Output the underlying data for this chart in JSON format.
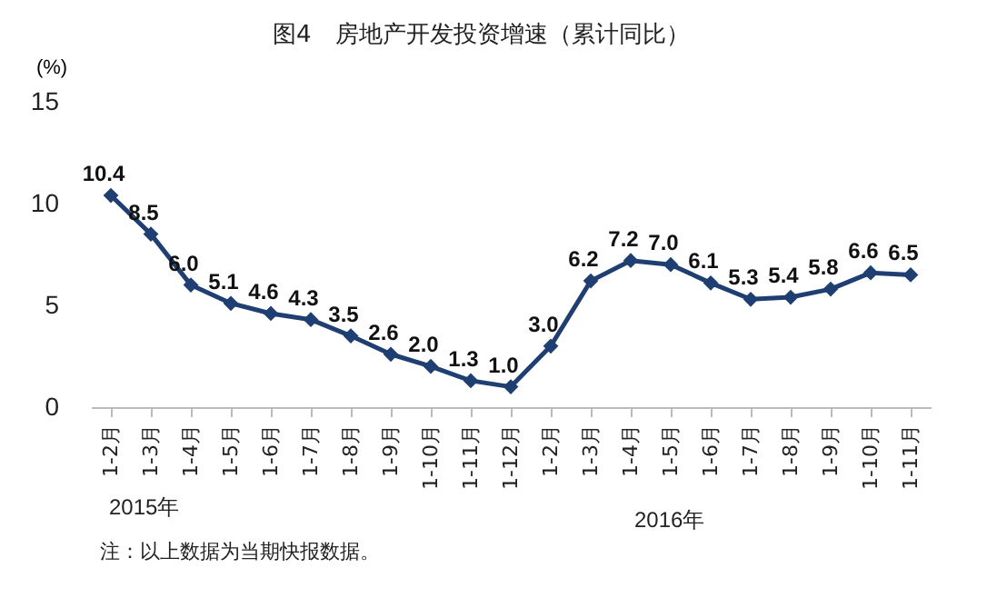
{
  "chart_data": {
    "type": "line",
    "title": "图4　房地产开发投资增速（累计同比）",
    "ylabel": "(%)",
    "categories": [
      "1-2月",
      "1-3月",
      "1-4月",
      "1-5月",
      "1-6月",
      "1-7月",
      "1-8月",
      "1-9月",
      "1-10月",
      "1-11月",
      "1-12月",
      "1-2月",
      "1-3月",
      "1-4月",
      "1-5月",
      "1-6月",
      "1-7月",
      "1-8月",
      "1-9月",
      "1-10月",
      "1-11月"
    ],
    "series": [
      {
        "color": "#1f3f73",
        "values": [
          10.4,
          8.5,
          6.0,
          5.1,
          4.6,
          4.3,
          3.5,
          2.6,
          2.0,
          1.3,
          1.0,
          3.0,
          6.2,
          7.2,
          7.0,
          6.1,
          5.3,
          5.4,
          5.8,
          6.6,
          6.5
        ]
      }
    ],
    "ylim": [
      0,
      15
    ],
    "yticks": [
      0,
      5,
      10,
      15
    ],
    "grid": false,
    "marker": "diamond",
    "line_style": "solid",
    "value_labels": [
      "10.4",
      "8.5",
      "6.0",
      "5.1",
      "4.6",
      "4.3",
      "3.5",
      "2.6",
      "2.0",
      "1.3",
      "1.0",
      "3.0",
      "6.2",
      "7.2",
      "7.0",
      "6.1",
      "5.3",
      "5.4",
      "5.8",
      "6.6",
      "6.5"
    ],
    "annotations": [
      "2015年",
      "2016年",
      "注：以上数据为当期快报数据。"
    ]
  }
}
